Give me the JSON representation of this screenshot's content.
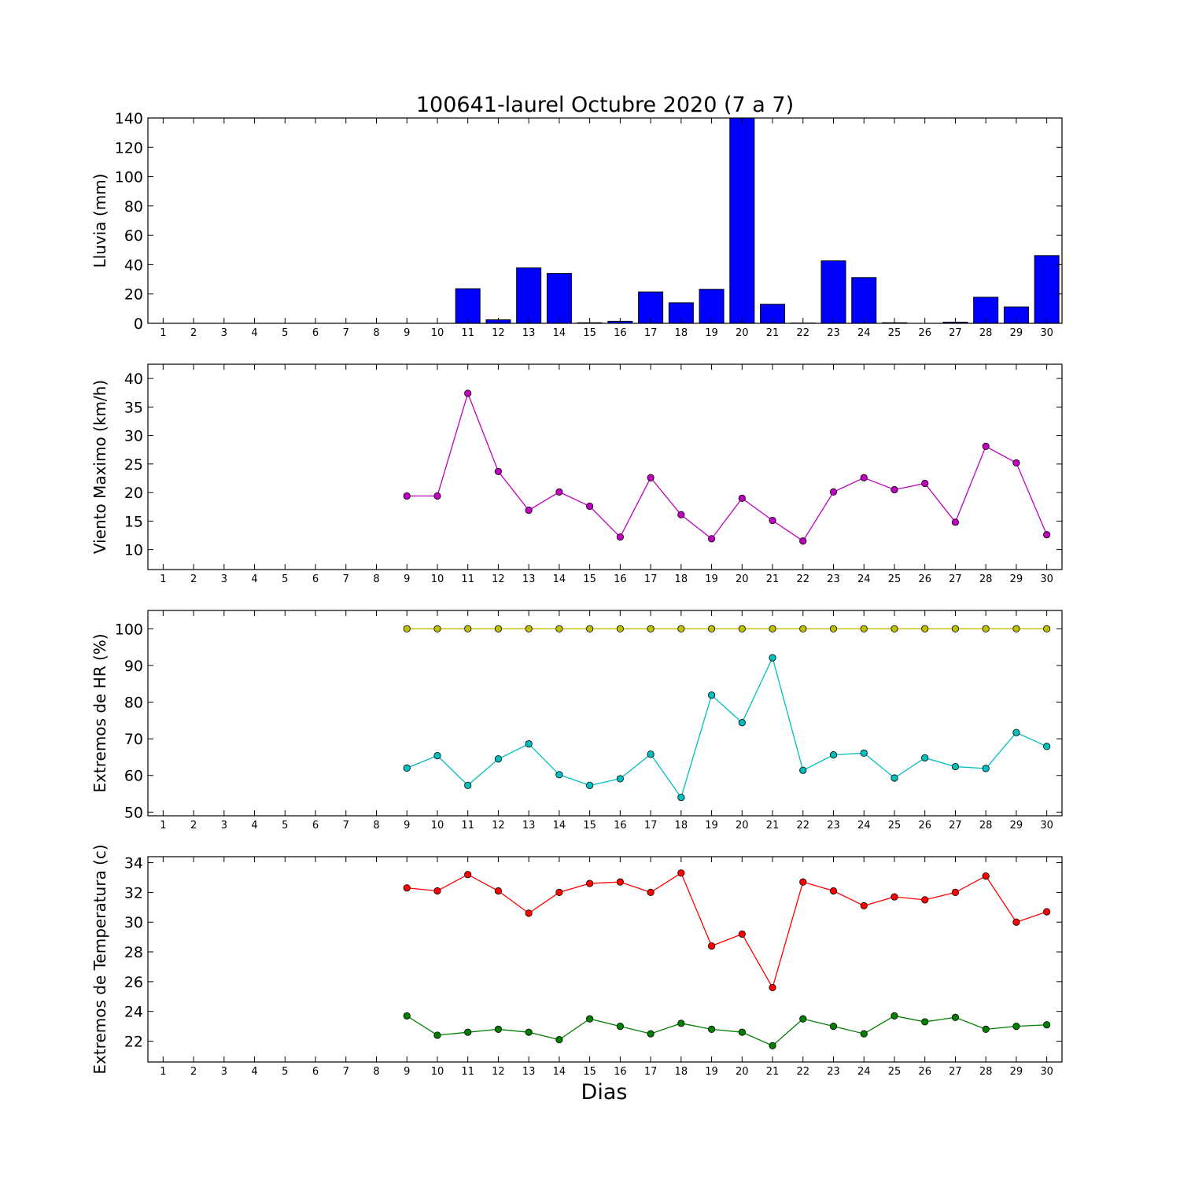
{
  "title": "100641-laurel Octubre 2020  (7 a 7)",
  "xlabel": "Dias",
  "chart_data": [
    {
      "type": "bar",
      "ylabel": "Lluvia (mm)",
      "categories": [
        1,
        2,
        3,
        4,
        5,
        6,
        7,
        8,
        9,
        10,
        11,
        12,
        13,
        14,
        15,
        16,
        17,
        18,
        19,
        20,
        21,
        22,
        23,
        24,
        25,
        26,
        27,
        28,
        29,
        30
      ],
      "ylim": [
        0,
        140
      ],
      "yticks": [
        0,
        20,
        40,
        60,
        80,
        100,
        120,
        140
      ],
      "color": "#0000ff",
      "values": [
        0,
        0,
        0,
        0,
        0,
        0,
        0,
        0,
        0,
        0,
        23.6,
        2.4,
        37.8,
        34,
        0.4,
        1.4,
        21.4,
        14,
        23.2,
        140,
        13,
        0.2,
        42.6,
        31.2,
        0.4,
        0,
        0.8,
        17.8,
        11.2,
        46.2
      ]
    },
    {
      "type": "line",
      "ylabel": "Viento Maximo (km/h)",
      "x": [
        9,
        10,
        11,
        12,
        13,
        14,
        15,
        16,
        17,
        18,
        19,
        20,
        21,
        22,
        23,
        24,
        25,
        26,
        27,
        28,
        29,
        30
      ],
      "ylim": [
        6.5,
        42.5
      ],
      "yticks": [
        10,
        15,
        20,
        25,
        30,
        35,
        40
      ],
      "series": [
        {
          "color": "#bf00bf",
          "values": [
            19.4,
            19.4,
            37.4,
            23.7,
            16.9,
            20.1,
            17.6,
            12.2,
            22.6,
            16.1,
            11.9,
            19,
            15.1,
            11.5,
            20.1,
            22.6,
            20.5,
            21.6,
            14.8,
            28.1,
            25.2,
            12.6
          ]
        }
      ]
    },
    {
      "type": "line",
      "ylabel": "Extremos de HR (%)",
      "x": [
        9,
        10,
        11,
        12,
        13,
        14,
        15,
        16,
        17,
        18,
        19,
        20,
        21,
        22,
        23,
        24,
        25,
        26,
        27,
        28,
        29,
        30
      ],
      "ylim": [
        49,
        105
      ],
      "yticks": [
        50,
        60,
        70,
        80,
        90,
        100
      ],
      "series": [
        {
          "color": "#bfbf00",
          "values": [
            100,
            100,
            100,
            100,
            100,
            100,
            100,
            100,
            100,
            100,
            100,
            100,
            100,
            100,
            100,
            100,
            100,
            100,
            100,
            100,
            100,
            100
          ]
        },
        {
          "color": "#00bfbf",
          "values": [
            62,
            65.4,
            57.3,
            64.5,
            68.6,
            60.2,
            57.3,
            59.1,
            65.8,
            54,
            81.9,
            74.4,
            92.1,
            61.4,
            65.6,
            66.1,
            59.3,
            64.8,
            62.4,
            61.9,
            71.7,
            67.9
          ]
        }
      ]
    },
    {
      "type": "line",
      "ylabel": "Extremos de Temperatura (c)",
      "x": [
        9,
        10,
        11,
        12,
        13,
        14,
        15,
        16,
        17,
        18,
        19,
        20,
        21,
        22,
        23,
        24,
        25,
        26,
        27,
        28,
        29,
        30
      ],
      "ylim": [
        20.6,
        34.4
      ],
      "yticks": [
        22,
        24,
        26,
        28,
        30,
        32,
        34
      ],
      "series": [
        {
          "color": "#ff0000",
          "values": [
            32.3,
            32.1,
            33.2,
            32.1,
            30.6,
            32,
            32.6,
            32.7,
            32,
            33.3,
            28.4,
            29.2,
            25.6,
            32.7,
            32.1,
            31.1,
            31.7,
            31.5,
            32,
            33.1,
            30,
            30.7
          ]
        },
        {
          "color": "#007f00",
          "values": [
            23.7,
            22.4,
            22.6,
            22.8,
            22.6,
            22.1,
            23.5,
            23,
            22.5,
            23.2,
            22.8,
            22.6,
            21.7,
            23.5,
            23,
            22.5,
            23.7,
            23.3,
            23.6,
            22.8,
            23,
            23.1
          ]
        }
      ]
    }
  ]
}
